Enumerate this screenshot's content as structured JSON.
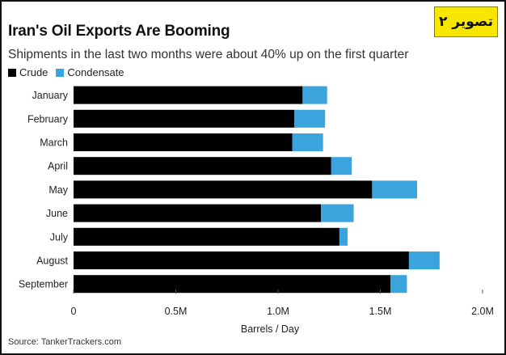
{
  "badge": {
    "text": "تصویر ۲"
  },
  "chart_data": {
    "type": "bar",
    "orientation": "horizontal",
    "stacked": true,
    "title": "Iran's Oil Exports Are Booming",
    "subtitle": "Shipments in the last two months were about 40% up on the first quarter",
    "xlabel": "Barrels / Day",
    "ylabel": "",
    "xlim": [
      0,
      2000000
    ],
    "x_ticks": [
      0,
      500000,
      1000000,
      1500000,
      2000000
    ],
    "x_tick_labels": [
      "0",
      "0.5M",
      "1.0M",
      "1.5M",
      "2.0M"
    ],
    "categories": [
      "January",
      "February",
      "March",
      "April",
      "May",
      "June",
      "July",
      "August",
      "September"
    ],
    "series": [
      {
        "name": "Crude",
        "color": "#000000",
        "values": [
          1120000,
          1080000,
          1070000,
          1260000,
          1460000,
          1210000,
          1300000,
          1640000,
          1550000
        ]
      },
      {
        "name": "Condensate",
        "color": "#3ba4dc",
        "values": [
          120000,
          150000,
          150000,
          100000,
          220000,
          160000,
          40000,
          150000,
          80000
        ]
      }
    ],
    "grid": false,
    "legend_position": "top-left"
  },
  "source": "Source: TankerTrackers.com"
}
